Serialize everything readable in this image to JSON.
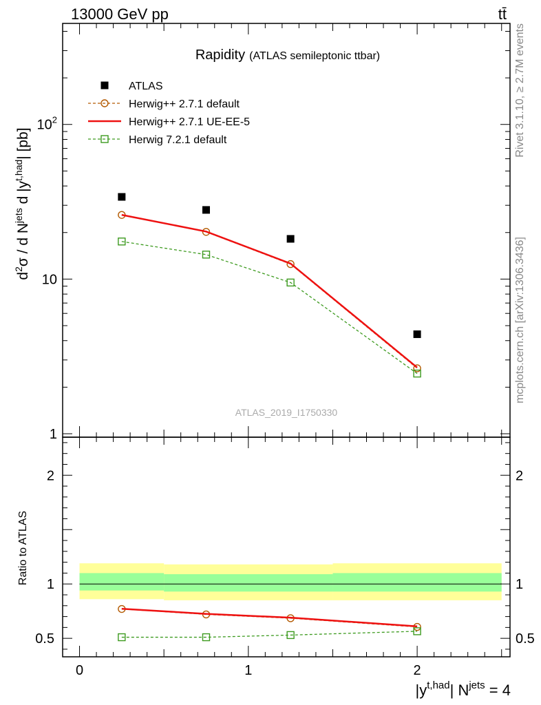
{
  "header": {
    "left": "13000 GeV pp",
    "right": "tt̄"
  },
  "side": {
    "rivet": "Rivet 3.1.10, ≥ 2.7M events",
    "mcplots": "mcplots.cern.ch [arXiv:1306.3436]"
  },
  "chart_data": [
    {
      "type": "line",
      "title": "Rapidity",
      "subtitle": "(ATLAS semileptonic ttbar)",
      "watermark": "ATLAS_2019_I1750330",
      "ylabel": "d²σ / d N^jets d |y^t,had| [pb]",
      "yscale": "log",
      "ylim": [
        0.95,
        450
      ],
      "xlim": [
        -0.1,
        2.55
      ],
      "y_ticklabels": [
        "1",
        "10",
        "10²"
      ],
      "legend_position": "top-left",
      "x": [
        0.25,
        0.75,
        1.25,
        2.0
      ],
      "series": [
        {
          "name": "ATLAS",
          "style": "square-filled",
          "color": "#000000",
          "values": [
            34,
            28,
            18.2,
            4.4
          ]
        },
        {
          "name": "Herwig++ 2.7.1 default",
          "style": "dashed-circle",
          "color": "#b35900",
          "values": [
            26,
            20.2,
            12.5,
            2.65
          ]
        },
        {
          "name": "Herwig++ 2.7.1 UE-EE-5",
          "style": "solid",
          "color": "#ee1111",
          "values": [
            26,
            20.3,
            12.6,
            2.68
          ]
        },
        {
          "name": "Herwig 7.2.1 default",
          "style": "dashed-square",
          "color": "#3c9a1e",
          "values": [
            17.5,
            14.4,
            9.5,
            2.45
          ]
        }
      ]
    },
    {
      "type": "line",
      "ylabel": "Ratio to ATLAS",
      "xlabel": "|y^t,had| N^jets = 4",
      "ylim": [
        0.33,
        2.35
      ],
      "xlim": [
        -0.1,
        2.55
      ],
      "x_ticklabels": [
        "0",
        "1",
        "2"
      ],
      "y_ticklabels": [
        "0.5",
        "1",
        "2"
      ],
      "x": [
        0.25,
        0.75,
        1.25,
        2.0
      ],
      "bands": [
        {
          "name": "ATLAS uncertainty outer",
          "color": "#ffff99",
          "bins": [
            [
              0.0,
              0.5,
              0.86,
              1.19
            ],
            [
              0.5,
              1.5,
              0.85,
              1.18
            ],
            [
              1.5,
              2.5,
              0.85,
              1.19
            ]
          ]
        },
        {
          "name": "ATLAS uncertainty inner",
          "color": "#99ff99",
          "bins": [
            [
              0.0,
              0.5,
              0.94,
              1.1
            ],
            [
              0.5,
              1.5,
              0.93,
              1.09
            ],
            [
              1.5,
              2.5,
              0.93,
              1.1
            ]
          ]
        }
      ],
      "series": [
        {
          "name": "Herwig++ 2.7.1 default",
          "style": "dashed-circle",
          "color": "#b35900",
          "values": [
            0.77,
            0.72,
            0.685,
            0.605
          ]
        },
        {
          "name": "Herwig++ 2.7.1 UE-EE-5",
          "style": "solid",
          "color": "#ee1111",
          "values": [
            0.772,
            0.725,
            0.69,
            0.61
          ]
        },
        {
          "name": "Herwig 7.2.1 default",
          "style": "dashed-square",
          "color": "#3c9a1e",
          "values": [
            0.51,
            0.51,
            0.53,
            0.565
          ]
        }
      ]
    }
  ]
}
